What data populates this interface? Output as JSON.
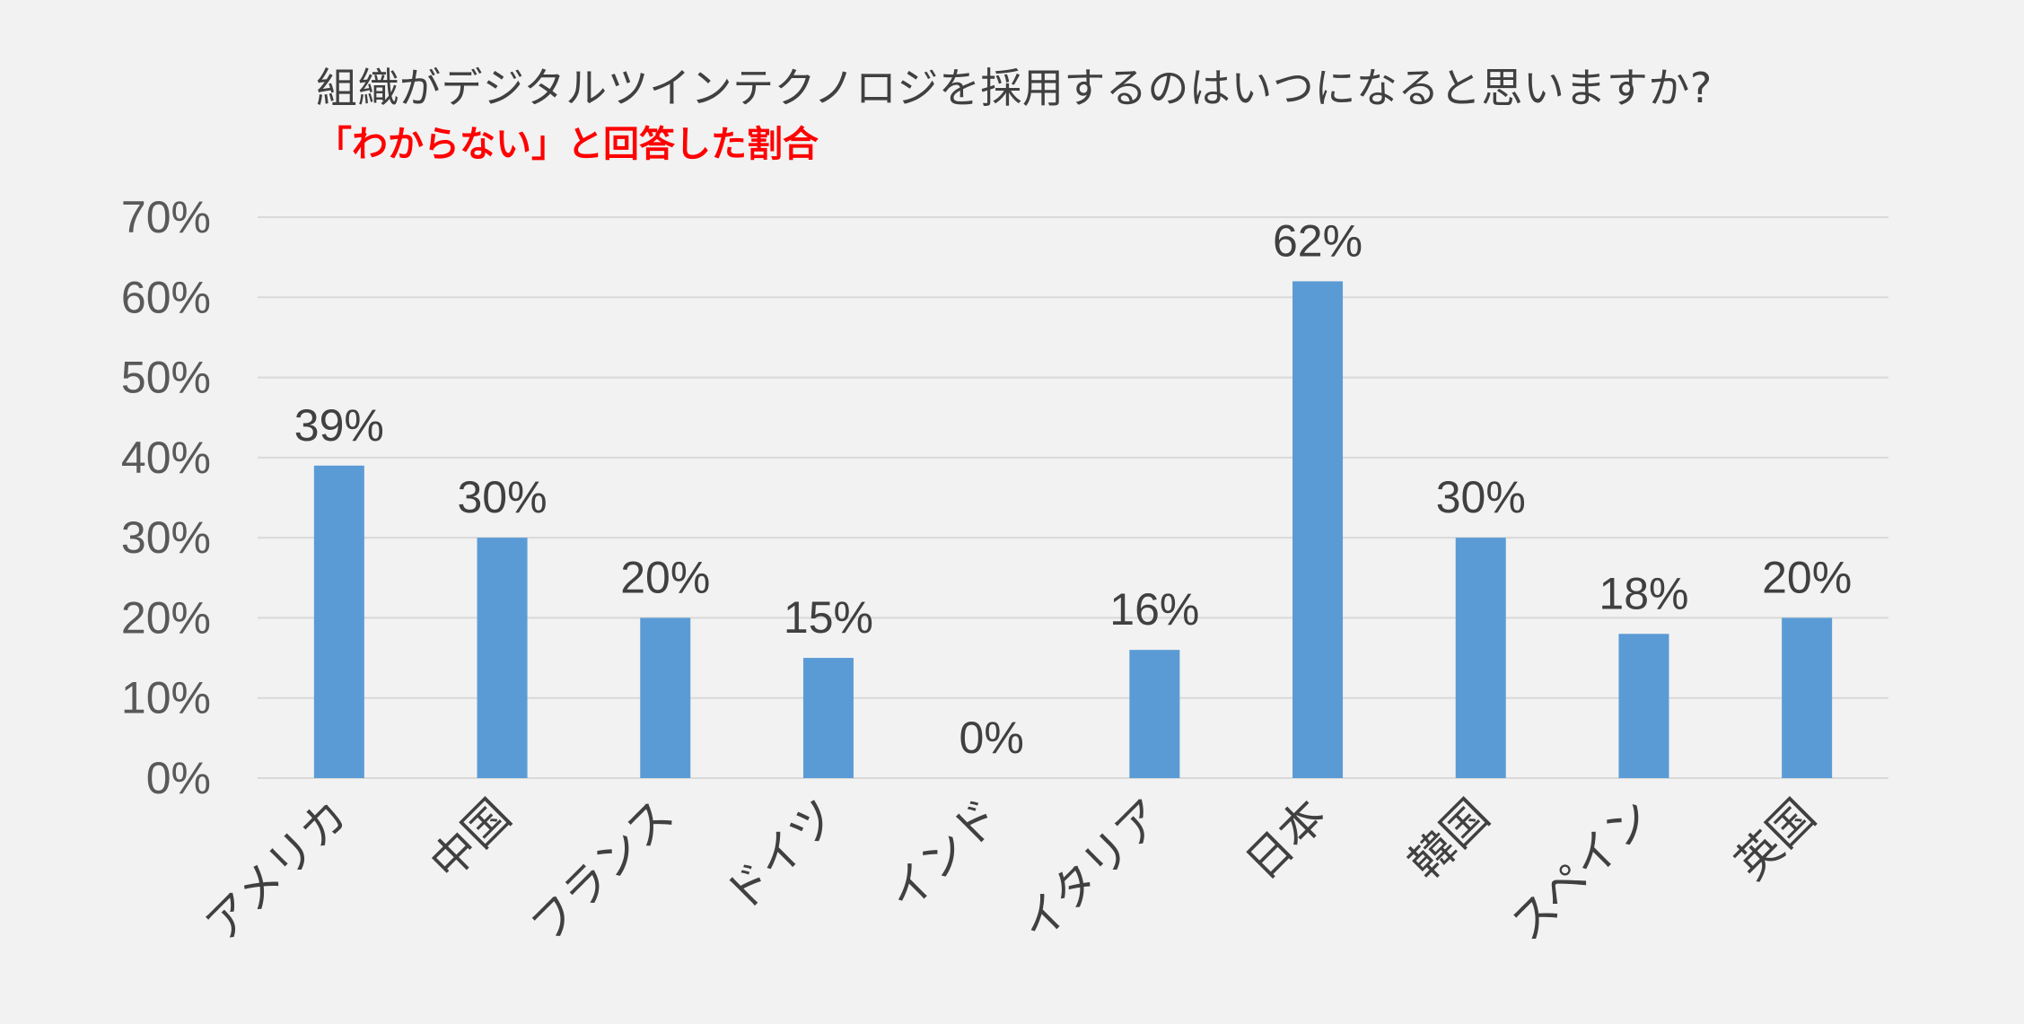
{
  "chart_data": {
    "type": "bar",
    "title": "組織がデジタルツインテクノロジを採用するのはいつになると思いますか?",
    "subtitle": "「わからない」と回答した割合",
    "categories": [
      "アメリカ",
      "中国",
      "フランス",
      "ドイツ",
      "インド",
      "イタリア",
      "日本",
      "韓国",
      "スペイン",
      "英国"
    ],
    "values": [
      39,
      30,
      20,
      15,
      0,
      16,
      62,
      30,
      18,
      20
    ],
    "data_labels": [
      "39%",
      "30%",
      "20%",
      "15%",
      "0%",
      "16%",
      "62%",
      "30%",
      "18%",
      "20%"
    ],
    "yticks": [
      0,
      10,
      20,
      30,
      40,
      50,
      60,
      70
    ],
    "ytick_labels": [
      "0%",
      "10%",
      "20%",
      "30%",
      "40%",
      "50%",
      "60%",
      "70%"
    ],
    "ylim": [
      0,
      70
    ],
    "xlabel": "",
    "ylabel": "",
    "grid": true,
    "legend": false,
    "bar_color": "#5b9bd5",
    "gridline_color": "#d9d9d9"
  }
}
